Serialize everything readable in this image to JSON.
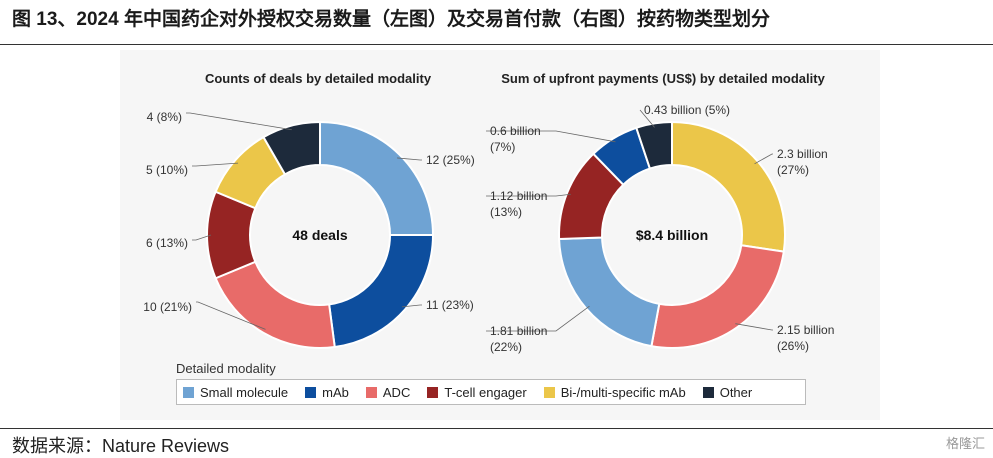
{
  "figure_title": "图 13、2024 年中国药企对外授权交易数量（左图）及交易首付款（右图）按药物类型划分",
  "source": "数据来源：Nature Reviews",
  "logo_text": "格隆汇",
  "legend": {
    "title": "Detailed modality",
    "items": [
      {
        "label": "Small molecule",
        "color": "#6fa3d3"
      },
      {
        "label": "mAb",
        "color": "#0d4e9e"
      },
      {
        "label": "ADC",
        "color": "#e86b69"
      },
      {
        "label": "T-cell engager",
        "color": "#962423"
      },
      {
        "label": "Bi-/multi-specific mAb",
        "color": "#ebc649"
      },
      {
        "label": "Other",
        "color": "#1d2a3b"
      }
    ]
  },
  "chart_data": [
    {
      "type": "pie",
      "donut": true,
      "title": "Counts of deals by detailed modality",
      "center_label": "48 deals",
      "slices": [
        {
          "name": "Small molecule",
          "value": 12,
          "label": "12 (25%)",
          "color": "#6fa3d3"
        },
        {
          "name": "mAb",
          "value": 11,
          "label": "11 (23%)",
          "color": "#0d4e9e"
        },
        {
          "name": "ADC",
          "value": 10,
          "label": "10 (21%)",
          "color": "#e86b69"
        },
        {
          "name": "T-cell engager",
          "value": 6,
          "label": "6 (13%)",
          "color": "#962423"
        },
        {
          "name": "Bi-/multi-specific mAb",
          "value": 5,
          "label": "5 (10%)",
          "color": "#ebc649"
        },
        {
          "name": "Other",
          "value": 4,
          "label": "4 (8%)",
          "color": "#1d2a3b"
        }
      ]
    },
    {
      "type": "pie",
      "donut": true,
      "title": "Sum of upfront payments (US$) by detailed modality",
      "center_label": "$8.4 billion",
      "slices": [
        {
          "name": "Bi-/multi-specific mAb",
          "value": 2.3,
          "label": [
            "2.3 billion",
            "(27%)"
          ],
          "color": "#ebc649"
        },
        {
          "name": "ADC",
          "value": 2.15,
          "label": [
            "2.15 billion",
            "(26%)"
          ],
          "color": "#e86b69"
        },
        {
          "name": "Small molecule",
          "value": 1.81,
          "label": [
            "1.81 billion",
            "(22%)"
          ],
          "color": "#6fa3d3"
        },
        {
          "name": "T-cell engager",
          "value": 1.12,
          "label": [
            "1.12 billion",
            "(13%)"
          ],
          "color": "#962423"
        },
        {
          "name": "mAb",
          "value": 0.6,
          "label": [
            "0.6 billion",
            "(7%)"
          ],
          "color": "#0d4e9e"
        },
        {
          "name": "Other",
          "value": 0.43,
          "label": [
            "0.43 billion (5%)"
          ],
          "color": "#1d2a3b"
        }
      ]
    }
  ]
}
